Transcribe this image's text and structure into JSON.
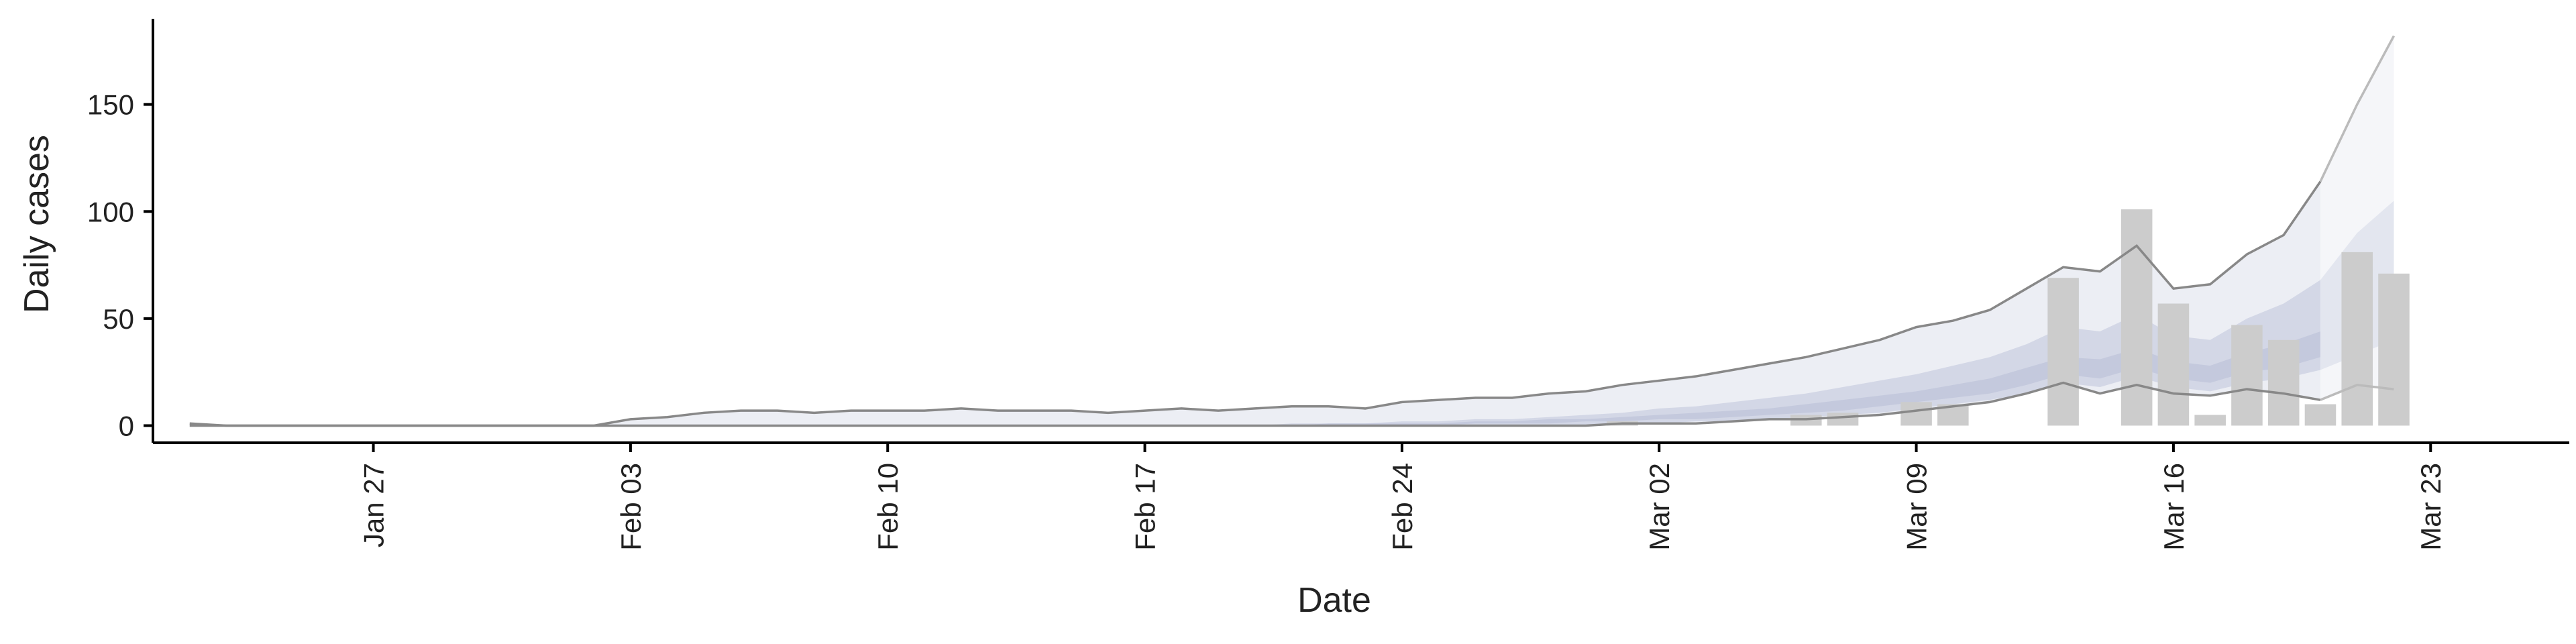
{
  "chart_data": {
    "type": "bar",
    "title": "",
    "xlabel": "Date",
    "ylabel": "Daily cases",
    "x_type": "date",
    "xlim": [
      "2020-01-21",
      "2020-03-23"
    ],
    "ylim": [
      -8,
      190
    ],
    "y_ticks": [
      0,
      50,
      100,
      150
    ],
    "x_ticks": [
      {
        "date": "2020-01-27",
        "label": "Jan 27"
      },
      {
        "date": "2020-02-03",
        "label": "Feb 03"
      },
      {
        "date": "2020-02-10",
        "label": "Feb 10"
      },
      {
        "date": "2020-02-17",
        "label": "Feb 17"
      },
      {
        "date": "2020-02-24",
        "label": "Feb 24"
      },
      {
        "date": "2020-03-02",
        "label": "Mar 02"
      },
      {
        "date": "2020-03-09",
        "label": "Mar 09"
      },
      {
        "date": "2020-03-16",
        "label": "Mar 16"
      },
      {
        "date": "2020-03-23",
        "label": "Mar 23"
      }
    ],
    "grid": false,
    "legend": "none",
    "colors": {
      "bars": "#cccccc",
      "band_outer": "#eceef4",
      "band_inner": "#d3d7e6",
      "band_forecast_outer": "#f5f6f9",
      "band_forecast_inner": "#e3e6ef",
      "bound_line": "#888888",
      "bound_line_forecast": "#bbbbbb",
      "axis": "#000000"
    },
    "observed_cases": {
      "dates": [
        "2020-03-01",
        "2020-03-06",
        "2020-03-07",
        "2020-03-09",
        "2020-03-10",
        "2020-03-13",
        "2020-03-14",
        "2020-03-15",
        "2020-03-16",
        "2020-03-17",
        "2020-03-18",
        "2020-03-19",
        "2020-03-20",
        "2020-03-21",
        "2020-03-22"
      ],
      "values": [
        2,
        5,
        6,
        11,
        10,
        69,
        0,
        101,
        57,
        5,
        47,
        40,
        10,
        81,
        71
      ]
    },
    "estimate": {
      "dates": [
        "2020-01-22",
        "2020-01-23",
        "2020-01-24",
        "2020-01-25",
        "2020-01-26",
        "2020-01-27",
        "2020-01-28",
        "2020-01-29",
        "2020-01-30",
        "2020-01-31",
        "2020-02-01",
        "2020-02-02",
        "2020-02-03",
        "2020-02-04",
        "2020-02-05",
        "2020-02-06",
        "2020-02-07",
        "2020-02-08",
        "2020-02-09",
        "2020-02-10",
        "2020-02-11",
        "2020-02-12",
        "2020-02-13",
        "2020-02-14",
        "2020-02-15",
        "2020-02-16",
        "2020-02-17",
        "2020-02-18",
        "2020-02-19",
        "2020-02-20",
        "2020-02-21",
        "2020-02-22",
        "2020-02-23",
        "2020-02-24",
        "2020-02-25",
        "2020-02-26",
        "2020-02-27",
        "2020-02-28",
        "2020-02-29",
        "2020-03-01",
        "2020-03-02",
        "2020-03-03",
        "2020-03-04",
        "2020-03-05",
        "2020-03-06",
        "2020-03-07",
        "2020-03-08",
        "2020-03-09",
        "2020-03-10",
        "2020-03-11",
        "2020-03-12",
        "2020-03-13",
        "2020-03-14",
        "2020-03-15",
        "2020-03-16",
        "2020-03-17",
        "2020-03-18",
        "2020-03-19",
        "2020-03-20",
        "2020-03-21",
        "2020-03-22"
      ],
      "upper_90": [
        1,
        0,
        0,
        0,
        0,
        0,
        0,
        0,
        0,
        0,
        0,
        0,
        3,
        4,
        6,
        7,
        7,
        6,
        7,
        7,
        7,
        8,
        7,
        7,
        7,
        6,
        7,
        8,
        7,
        8,
        9,
        9,
        8,
        11,
        12,
        13,
        13,
        15,
        16,
        19,
        21,
        23,
        26,
        29,
        32,
        36,
        40,
        46,
        49,
        54,
        64,
        74,
        72,
        84,
        64,
        66,
        80,
        89,
        114,
        150,
        182
      ],
      "upper_50": [
        0,
        0,
        0,
        0,
        0,
        0,
        0,
        0,
        0,
        0,
        0,
        0,
        0,
        0,
        0,
        0,
        0,
        0,
        0,
        0,
        0,
        0,
        0,
        0,
        0,
        0,
        0,
        0,
        0,
        0,
        1,
        1,
        1,
        2,
        2,
        3,
        3,
        4,
        5,
        6,
        8,
        9,
        11,
        13,
        15,
        18,
        21,
        24,
        28,
        32,
        38,
        46,
        44,
        52,
        42,
        40,
        50,
        57,
        68,
        90,
        105
      ],
      "upper_20": [
        0,
        0,
        0,
        0,
        0,
        0,
        0,
        0,
        0,
        0,
        0,
        0,
        0,
        0,
        0,
        0,
        0,
        0,
        0,
        0,
        0,
        0,
        0,
        0,
        0,
        0,
        0,
        0,
        0,
        0,
        0,
        1,
        1,
        1,
        1,
        2,
        2,
        3,
        3,
        4,
        5,
        6,
        7,
        8,
        10,
        12,
        14,
        16,
        19,
        22,
        27,
        32,
        31,
        36,
        30,
        28,
        34,
        38,
        44,
        55,
        65
      ],
      "lower_20": [
        0,
        0,
        0,
        0,
        0,
        0,
        0,
        0,
        0,
        0,
        0,
        0,
        0,
        0,
        0,
        0,
        0,
        0,
        0,
        0,
        0,
        0,
        0,
        0,
        0,
        0,
        0,
        0,
        0,
        0,
        0,
        0,
        0,
        0,
        0,
        1,
        1,
        1,
        2,
        2,
        3,
        3,
        4,
        5,
        6,
        7,
        9,
        11,
        13,
        15,
        19,
        24,
        22,
        27,
        22,
        20,
        25,
        27,
        32,
        40,
        50
      ],
      "lower_50": [
        0,
        0,
        0,
        0,
        0,
        0,
        0,
        0,
        0,
        0,
        0,
        0,
        0,
        0,
        0,
        0,
        0,
        0,
        0,
        0,
        0,
        0,
        0,
        0,
        0,
        0,
        0,
        0,
        0,
        0,
        0,
        0,
        0,
        0,
        0,
        0,
        0,
        0,
        0,
        1,
        1,
        2,
        2,
        3,
        4,
        5,
        6,
        8,
        10,
        12,
        15,
        20,
        18,
        23,
        18,
        16,
        20,
        22,
        26,
        33,
        40
      ],
      "lower_90": [
        0,
        0,
        0,
        0,
        0,
        0,
        0,
        0,
        0,
        0,
        0,
        0,
        0,
        0,
        0,
        0,
        0,
        0,
        0,
        0,
        0,
        0,
        0,
        0,
        0,
        0,
        0,
        0,
        0,
        0,
        0,
        0,
        0,
        0,
        0,
        0,
        0,
        0,
        0,
        1,
        1,
        1,
        2,
        3,
        3,
        4,
        5,
        7,
        9,
        11,
        15,
        20,
        15,
        19,
        15,
        14,
        17,
        15,
        12,
        19,
        17
      ],
      "forecast_start": "2020-03-20"
    }
  }
}
